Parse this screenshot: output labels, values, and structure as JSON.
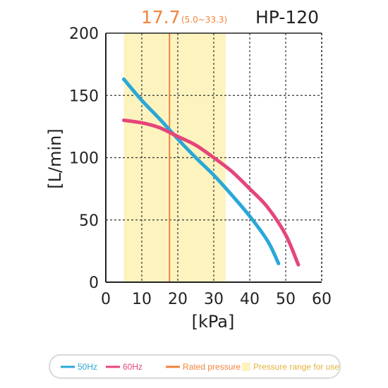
{
  "model_name": "HP-120",
  "rated_value": "17.7",
  "rated_range_text": "(5.0~33.3)",
  "colors": {
    "series_50hz": "#29a8d8",
    "series_60hz": "#e5457a",
    "rated_line": "#f0843c",
    "range_band": "#fdf3bf",
    "grid": "#333333"
  },
  "legend": {
    "items": [
      {
        "label": "50Hz",
        "swatch": "line",
        "color": "#29a8d8"
      },
      {
        "label": "60Hz",
        "swatch": "line",
        "color": "#e5457a"
      },
      {
        "label": "Rated pressure",
        "swatch": "line",
        "color": "#f0843c"
      },
      {
        "label": "Pressure range for use",
        "swatch": "box",
        "color": "#fdf3bf"
      }
    ]
  },
  "chart_data": {
    "type": "line",
    "title": "HP-120",
    "xlabel": "[kPa]",
    "ylabel": "[L/min]",
    "xlim": [
      0,
      60
    ],
    "ylim": [
      0,
      200
    ],
    "xticks": [
      0,
      10,
      20,
      30,
      40,
      50,
      60
    ],
    "yticks": [
      0,
      50,
      100,
      150,
      200
    ],
    "grid": true,
    "legend_position": "bottom",
    "rated_pressure": 17.7,
    "pressure_range": [
      5.0,
      33.3
    ],
    "series": [
      {
        "name": "50Hz",
        "color": "#29a8d8",
        "x": [
          5,
          10,
          15,
          20,
          25,
          30,
          35,
          40,
          45,
          48
        ],
        "y": [
          163,
          146,
          131,
          115,
          100,
          86,
          70,
          53,
          33,
          15
        ]
      },
      {
        "name": "60Hz",
        "color": "#e5457a",
        "x": [
          5,
          10,
          15,
          20,
          25,
          30,
          35,
          40,
          45,
          50,
          53.5
        ],
        "y": [
          130,
          128,
          124,
          117,
          110,
          100,
          89,
          75,
          60,
          38,
          14
        ]
      }
    ]
  }
}
